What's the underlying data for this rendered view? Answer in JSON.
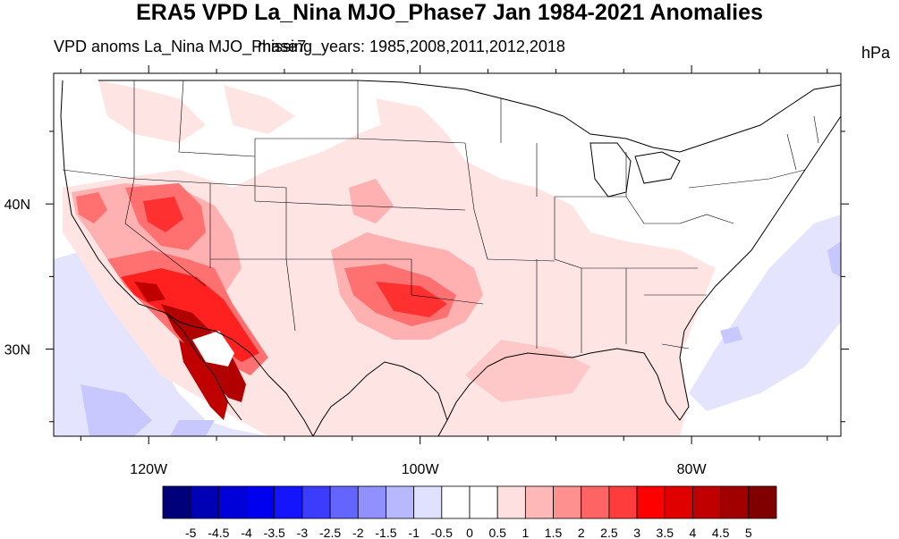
{
  "title": "ERA5 VPD La_Nina MJO_Phase7 Jan 1984-2021 Anomalies",
  "subtitle_left": "VPD anoms La_Nina MJO_Phase7",
  "subtitle_overlap": "missing_years: 1985,2008,2011,2012,2018",
  "units": "hPa",
  "map": {
    "lon_range": [
      -127,
      -69
    ],
    "lat_range": [
      24,
      49
    ],
    "lon_ticks": [
      {
        "value": -120,
        "label": "120W"
      },
      {
        "value": -100,
        "label": "100W"
      },
      {
        "value": -80,
        "label": "80W"
      }
    ],
    "lat_ticks": [
      {
        "value": 40,
        "label": "40N"
      },
      {
        "value": 30,
        "label": "30N"
      }
    ]
  },
  "colorbar": {
    "labels": [
      "-5",
      "-4.5",
      "-4",
      "-3.5",
      "-3",
      "-2.5",
      "-2",
      "-1.5",
      "-1",
      "-0.5",
      "0",
      "0.5",
      "1",
      "1.5",
      "2",
      "2.5",
      "3",
      "3.5",
      "4",
      "4.5",
      "5"
    ],
    "colors": [
      "#00007a",
      "#0000b4",
      "#0000d8",
      "#0000f0",
      "#1414ff",
      "#3c3cff",
      "#6464ff",
      "#9090ff",
      "#b8b8ff",
      "#e0e0ff",
      "#ffffff",
      "#ffffff",
      "#ffe0e0",
      "#ffb8b8",
      "#ff9090",
      "#ff6464",
      "#ff3c3c",
      "#ff0000",
      "#e00000",
      "#c00000",
      "#a00000",
      "#800000"
    ]
  }
}
